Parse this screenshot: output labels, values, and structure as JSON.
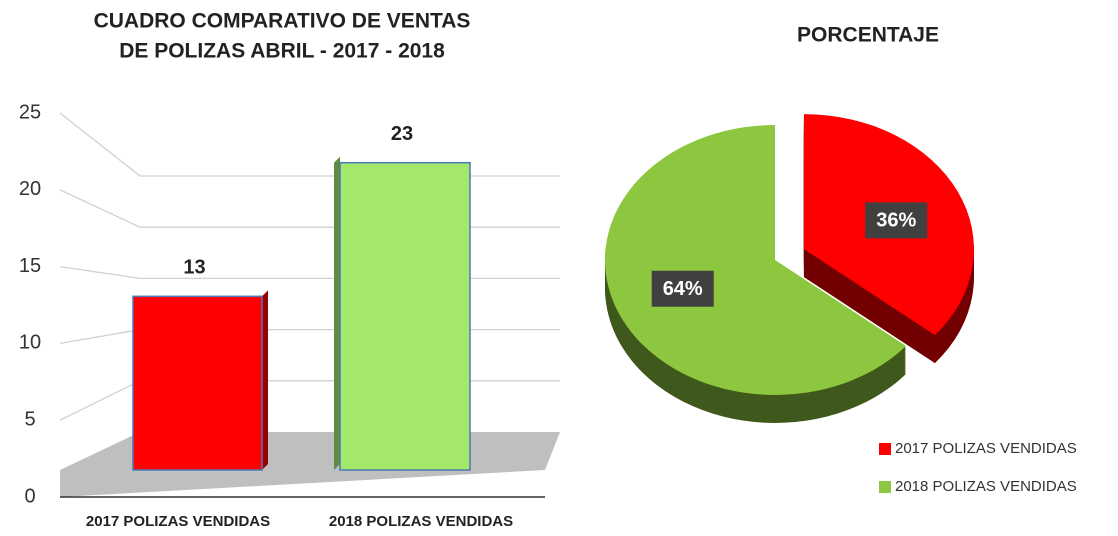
{
  "chart_data": [
    {
      "type": "bar3d",
      "title": [
        "CUADRO COMPARATIVO DE VENTAS",
        "DE POLIZAS ABRIL - 2017 - 2018"
      ],
      "categories": [
        "2017 POLIZAS VENDIDAS",
        "2018 POLIZAS VENDIDAS"
      ],
      "values": [
        13,
        23
      ],
      "colors": [
        "#ff0000",
        "#a4e86a"
      ],
      "ylim": [
        0,
        25
      ],
      "yticks": [
        0,
        5,
        10,
        15,
        20,
        25
      ],
      "grid": true
    },
    {
      "type": "pie3d",
      "title": "PORCENTAJE",
      "categories": [
        "2017 POLIZAS VENDIDAS",
        "2018 POLIZAS VENDIDAS"
      ],
      "values": [
        36,
        64
      ],
      "value_labels": [
        "36%",
        "64%"
      ],
      "colors": [
        "#ff0000",
        "#8dc63f"
      ],
      "legend": "bottom-right"
    }
  ]
}
